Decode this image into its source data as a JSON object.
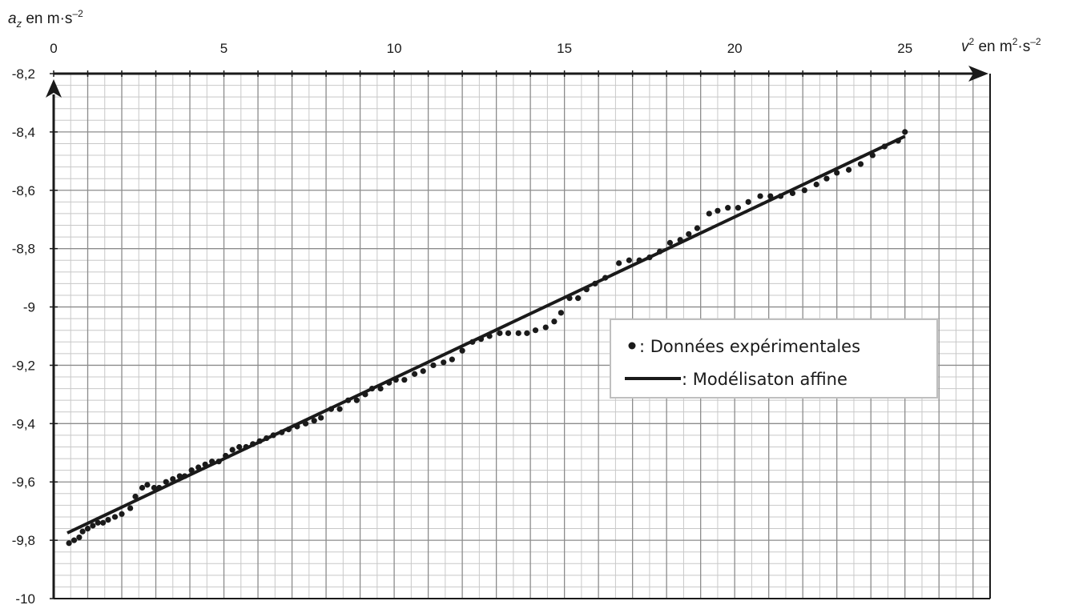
{
  "chart_data": {
    "type": "scatter",
    "x_axis": {
      "label_main": "v",
      "label_sup": "2",
      "label_unit": " en m",
      "label_unit_sup1": "2",
      "label_unit_mid": "·s",
      "label_unit_sup2": "–2",
      "min": 0,
      "max": 27.5,
      "ticks": [
        0,
        5,
        10,
        15,
        20,
        25
      ],
      "tick_labels": [
        "0",
        "5",
        "10",
        "15",
        "20",
        "25"
      ],
      "minor_step": 0.5,
      "labels_position": "top"
    },
    "y_axis": {
      "label_main": "a",
      "label_sub": "z",
      "label_unit": " en m·s",
      "label_unit_sup": "–2",
      "min": -10,
      "max": -8.2,
      "ticks": [
        -8.2,
        -8.4,
        -8.6,
        -8.8,
        -9,
        -9.2,
        -9.4,
        -9.6,
        -9.8,
        -10
      ],
      "tick_labels": [
        "-8,2",
        "-8,4",
        "-8,6",
        "-8,8",
        "-9",
        "-9,2",
        "-9,4",
        "-9,6",
        "-9,8",
        "-10"
      ],
      "minor_step": 0.04
    },
    "grid": true,
    "legend": {
      "placement": "center-right",
      "entries": [
        {
          "marker": "•",
          "label": " : Données expérimentales"
        },
        {
          "marker": "line",
          "label": " : Modélisaton affine"
        }
      ]
    },
    "series": [
      {
        "kind": "points",
        "color": "#1a1a1a",
        "points": [
          [
            0.45,
            -9.81
          ],
          [
            0.6,
            -9.8
          ],
          [
            0.75,
            -9.79
          ],
          [
            0.85,
            -9.77
          ],
          [
            1.0,
            -9.76
          ],
          [
            1.15,
            -9.75
          ],
          [
            1.3,
            -9.74
          ],
          [
            1.45,
            -9.74
          ],
          [
            1.6,
            -9.73
          ],
          [
            1.8,
            -9.72
          ],
          [
            2.0,
            -9.71
          ],
          [
            2.25,
            -9.69
          ],
          [
            2.4,
            -9.65
          ],
          [
            2.6,
            -9.62
          ],
          [
            2.75,
            -9.61
          ],
          [
            2.95,
            -9.62
          ],
          [
            3.1,
            -9.62
          ],
          [
            3.3,
            -9.6
          ],
          [
            3.5,
            -9.59
          ],
          [
            3.7,
            -9.58
          ],
          [
            3.85,
            -9.58
          ],
          [
            4.05,
            -9.56
          ],
          [
            4.25,
            -9.55
          ],
          [
            4.45,
            -9.54
          ],
          [
            4.65,
            -9.53
          ],
          [
            4.85,
            -9.53
          ],
          [
            5.05,
            -9.51
          ],
          [
            5.25,
            -9.49
          ],
          [
            5.45,
            -9.48
          ],
          [
            5.65,
            -9.48
          ],
          [
            5.85,
            -9.47
          ],
          [
            6.05,
            -9.46
          ],
          [
            6.25,
            -9.45
          ],
          [
            6.45,
            -9.44
          ],
          [
            6.7,
            -9.43
          ],
          [
            6.9,
            -9.42
          ],
          [
            7.15,
            -9.41
          ],
          [
            7.4,
            -9.4
          ],
          [
            7.65,
            -9.39
          ],
          [
            7.85,
            -9.38
          ],
          [
            8.15,
            -9.35
          ],
          [
            8.4,
            -9.35
          ],
          [
            8.65,
            -9.32
          ],
          [
            8.9,
            -9.32
          ],
          [
            9.15,
            -9.3
          ],
          [
            9.35,
            -9.28
          ],
          [
            9.6,
            -9.28
          ],
          [
            9.85,
            -9.26
          ],
          [
            10.05,
            -9.25
          ],
          [
            10.3,
            -9.25
          ],
          [
            10.6,
            -9.23
          ],
          [
            10.85,
            -9.22
          ],
          [
            11.15,
            -9.2
          ],
          [
            11.45,
            -9.19
          ],
          [
            11.7,
            -9.18
          ],
          [
            12.0,
            -9.15
          ],
          [
            12.3,
            -9.12
          ],
          [
            12.55,
            -9.11
          ],
          [
            12.8,
            -9.1
          ],
          [
            13.1,
            -9.09
          ],
          [
            13.35,
            -9.09
          ],
          [
            13.65,
            -9.09
          ],
          [
            13.9,
            -9.09
          ],
          [
            14.15,
            -9.08
          ],
          [
            14.45,
            -9.07
          ],
          [
            14.7,
            -9.05
          ],
          [
            14.9,
            -9.02
          ],
          [
            15.15,
            -8.97
          ],
          [
            15.4,
            -8.97
          ],
          [
            15.65,
            -8.94
          ],
          [
            15.9,
            -8.92
          ],
          [
            16.2,
            -8.9
          ],
          [
            16.6,
            -8.85
          ],
          [
            16.9,
            -8.84
          ],
          [
            17.2,
            -8.84
          ],
          [
            17.5,
            -8.83
          ],
          [
            17.8,
            -8.81
          ],
          [
            18.1,
            -8.78
          ],
          [
            18.4,
            -8.77
          ],
          [
            18.65,
            -8.75
          ],
          [
            18.9,
            -8.73
          ],
          [
            19.25,
            -8.68
          ],
          [
            19.5,
            -8.67
          ],
          [
            19.8,
            -8.66
          ],
          [
            20.1,
            -8.66
          ],
          [
            20.4,
            -8.64
          ],
          [
            20.75,
            -8.62
          ],
          [
            21.05,
            -8.62
          ],
          [
            21.35,
            -8.62
          ],
          [
            21.7,
            -8.61
          ],
          [
            22.05,
            -8.6
          ],
          [
            22.4,
            -8.58
          ],
          [
            22.7,
            -8.56
          ],
          [
            23.0,
            -8.54
          ],
          [
            23.35,
            -8.53
          ],
          [
            23.7,
            -8.51
          ],
          [
            24.05,
            -8.48
          ],
          [
            24.4,
            -8.45
          ],
          [
            24.8,
            -8.43
          ],
          [
            25.0,
            -8.4
          ]
        ]
      },
      {
        "kind": "line",
        "color": "#1a1a1a",
        "points": [
          [
            0.4,
            -9.775
          ],
          [
            25.0,
            -8.415
          ]
        ]
      }
    ]
  }
}
